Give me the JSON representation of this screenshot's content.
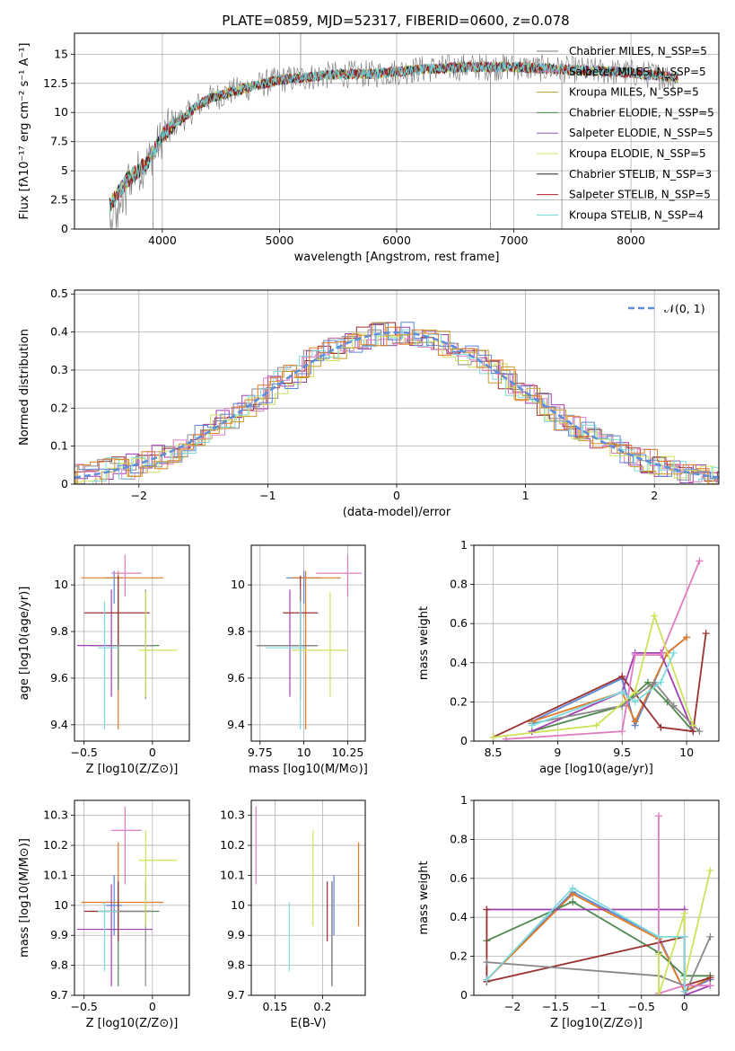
{
  "title": "PLATE=0859, MJD=52317, FIBERID=0600, z=0.078",
  "colors": [
    "#808080",
    "#e377c2",
    "#bcbd22",
    "#2ca02c",
    "#9467bd",
    "#dbdb8d",
    "#000000",
    "#d62728",
    "#17becf"
  ],
  "chart_data": [
    {
      "type": "line",
      "xlabel": "wavelength [Angstrom, rest frame]",
      "ylabel": "Flux [fλ10⁻¹⁷ erg cm⁻² s⁻¹ A⁻¹]",
      "xlim": [
        3250,
        8750
      ],
      "ylim": [
        0,
        16.8
      ],
      "xticks": [
        4000,
        5000,
        6000,
        7000,
        8000
      ],
      "yticks": [
        0.0,
        2.5,
        5.0,
        7.5,
        10.0,
        12.5,
        15.0
      ],
      "legend": "top-right",
      "series": [
        {
          "name": "Chabrier MILES, N_SSP=5",
          "color": "#7f7f7f"
        },
        {
          "name": "Salpeter MILES, N_SSP=5",
          "color": "#e377c2"
        },
        {
          "name": "Kroupa MILES, N_SSP=5",
          "color": "#bcbd22"
        },
        {
          "name": "Chabrier ELODIE, N_SSP=5",
          "color": "#2ca02c"
        },
        {
          "name": "Salpeter ELODIE, N_SSP=5",
          "color": "#9467bd"
        },
        {
          "name": "Kroupa ELODIE, N_SSP=5",
          "color": "#dbdb8d"
        },
        {
          "name": "Chabrier STELIB, N_SSP=3",
          "color": "#000000"
        },
        {
          "name": "Salpeter STELIB, N_SSP=5",
          "color": "#d62728"
        },
        {
          "name": "Kroupa STELIB, N_SSP=4",
          "color": "#17becf"
        }
      ],
      "envelope": {
        "x": [
          3550,
          3700,
          3850,
          3950,
          4000,
          4100,
          4200,
          4300,
          4400,
          4600,
          4800,
          5000,
          5200,
          5400,
          5600,
          5800,
          6000,
          6200,
          6400,
          6600,
          6800,
          7000,
          7200,
          7400,
          7600,
          7800,
          8000,
          8200,
          8400
        ],
        "y": [
          2.0,
          4.2,
          5.5,
          7.0,
          8.0,
          9.0,
          9.7,
          10.6,
          11.2,
          11.8,
          12.3,
          12.8,
          13.0,
          13.2,
          13.3,
          13.3,
          13.5,
          13.7,
          13.8,
          13.9,
          13.9,
          13.9,
          13.8,
          13.7,
          13.6,
          13.5,
          13.4,
          13.2,
          13.0
        ]
      }
    },
    {
      "type": "line",
      "xlabel": "(data-model)/error",
      "ylabel": "Normed distribution",
      "xlim": [
        -2.5,
        2.5
      ],
      "ylim": [
        0,
        0.51
      ],
      "xticks": [
        -2,
        -1,
        0,
        1,
        2
      ],
      "yticks": [
        0.0,
        0.1,
        0.2,
        0.3,
        0.4,
        0.5
      ],
      "legend": "top-right",
      "reference": {
        "name": "𝒩(0, 1)",
        "mean": 0,
        "sigma": 1,
        "color": "#5d8fd9"
      }
    },
    {
      "type": "scatter",
      "xlabel": "Z [log10(Z/Z⊙)]",
      "ylabel": "age  [log10(age/yr)]",
      "xlim": [
        -0.57,
        0.27
      ],
      "ylim": [
        9.33,
        10.17
      ],
      "xticks": [
        -0.5,
        0.0
      ],
      "yticks": [
        9.4,
        9.6,
        9.8,
        10.0
      ]
    },
    {
      "type": "scatter",
      "xlabel": "mass [log10(M/M⊙)]",
      "ylabel": "",
      "xlim": [
        9.7,
        10.35
      ],
      "ylim": [
        9.33,
        10.17
      ],
      "xticks": [
        9.75,
        10.0,
        10.25
      ],
      "yticks": [
        9.4,
        9.6,
        9.8,
        10.0
      ]
    },
    {
      "type": "line",
      "xlabel": "age  [log10(age/yr)]",
      "ylabel": "mass weight",
      "xlim": [
        8.35,
        10.25
      ],
      "ylim": [
        0,
        1.0
      ],
      "xticks": [
        8.5,
        9.0,
        9.5,
        10.0
      ],
      "yticks": [
        0.0,
        0.2,
        0.4,
        0.6,
        0.8,
        1.0
      ]
    },
    {
      "type": "scatter",
      "xlabel": "Z [log10(Z/Z⊙)]",
      "ylabel": "mass [log10(M/M⊙)]",
      "xlim": [
        -0.57,
        0.27
      ],
      "ylim": [
        9.7,
        10.35
      ],
      "xticks": [
        -0.5,
        0.0
      ],
      "yticks": [
        9.7,
        9.8,
        9.9,
        10.0,
        10.1,
        10.2,
        10.3
      ]
    },
    {
      "type": "scatter",
      "xlabel": "E(B-V)",
      "ylabel": "",
      "xlim": [
        0.125,
        0.245
      ],
      "ylim": [
        9.7,
        10.35
      ],
      "xticks": [
        0.15,
        0.2
      ],
      "yticks": [
        9.7,
        9.8,
        9.9,
        10.0,
        10.1,
        10.2,
        10.3
      ]
    },
    {
      "type": "line",
      "xlabel": "Z [log10(Z/Z⊙)]",
      "ylabel": "mass weight",
      "xlim": [
        -2.45,
        0.4
      ],
      "ylim": [
        0,
        1.0
      ],
      "xticks": [
        -2.0,
        -1.5,
        -1.0,
        -0.5,
        0.0
      ],
      "yticks": [
        0.0,
        0.2,
        0.4,
        0.6,
        0.8,
        1.0
      ]
    }
  ],
  "fits": [
    {
      "Z": -0.28,
      "Z_lo": -0.34,
      "Z_hi": -0.22,
      "age": 10.03,
      "age_lo": 9.92,
      "age_hi": 10.06,
      "mass": 10.0,
      "mass_lo": 9.9,
      "mass_hi": 10.1,
      "ebv": 0.212,
      "weights": [
        [
          8.8,
          0.1
        ],
        [
          9.5,
          0.32
        ],
        [
          9.6,
          0.08
        ],
        [
          9.85,
          0.45
        ],
        [
          10.0,
          0.53
        ]
      ],
      "zw": [
        [
          -2.3,
          0.08
        ],
        [
          -1.3,
          0.53
        ],
        [
          -0.3,
          0.3
        ],
        [
          0.0,
          0.02
        ],
        [
          0.3,
          0.08
        ]
      ]
    },
    {
      "Z": -0.25,
      "Z_lo": -0.52,
      "Z_hi": 0.08,
      "age": 10.03,
      "age_lo": 9.38,
      "age_hi": 10.06,
      "mass": 10.01,
      "mass_lo": 9.93,
      "mass_hi": 10.21,
      "ebv": 0.238,
      "weights": [
        [
          8.8,
          0.1
        ],
        [
          9.5,
          0.25
        ],
        [
          9.6,
          0.1
        ],
        [
          9.85,
          0.45
        ],
        [
          10.0,
          0.53
        ]
      ],
      "zw": [
        [
          -2.3,
          0.08
        ],
        [
          -1.3,
          0.52
        ],
        [
          -0.3,
          0.29
        ],
        [
          0.0,
          0.02
        ],
        [
          0.3,
          0.09
        ]
      ]
    },
    {
      "Z": -0.25,
      "Z_lo": -0.45,
      "Z_hi": 0.05,
      "age": 9.74,
      "age_lo": 9.55,
      "age_hi": 9.98,
      "mass": 9.98,
      "mass_lo": 9.73,
      "mass_hi": 10.08,
      "ebv": 0.21,
      "weights": [
        [
          8.8,
          0.05
        ],
        [
          9.5,
          0.18
        ],
        [
          9.7,
          0.3
        ],
        [
          9.85,
          0.2
        ],
        [
          10.05,
          0.05
        ]
      ],
      "zw": [
        [
          -2.3,
          0.28
        ],
        [
          -1.3,
          0.48
        ],
        [
          -0.3,
          0.22
        ],
        [
          0.0,
          0.1
        ],
        [
          0.3,
          0.1
        ]
      ]
    },
    {
      "Z": -0.3,
      "Z_lo": -0.55,
      "Z_hi": 0.0,
      "age": 9.74,
      "age_lo": 9.52,
      "age_hi": 9.98,
      "mass": 9.92,
      "mass_lo": 9.73,
      "mass_hi": 10.07,
      "ebv": 0.21,
      "weights": [
        [
          8.8,
          0.05
        ],
        [
          9.5,
          0.25
        ],
        [
          9.6,
          0.45
        ],
        [
          9.8,
          0.45
        ],
        [
          10.05,
          0.05
        ]
      ],
      "zw": [
        [
          -2.3,
          0.44
        ],
        [
          -0.3,
          0.44
        ],
        [
          0.0,
          0.44
        ],
        [
          0.0,
          0.0
        ],
        [
          0.3,
          0.05
        ]
      ]
    },
    {
      "Z": -0.25,
      "Z_lo": -0.5,
      "Z_hi": -0.02,
      "age": 9.88,
      "age_lo": 9.74,
      "age_hi": 10.04,
      "mass": 9.98,
      "mass_lo": 9.88,
      "mass_hi": 10.08,
      "ebv": 0.205,
      "weights": [
        [
          8.5,
          0.02
        ],
        [
          9.5,
          0.33
        ],
        [
          9.8,
          0.07
        ],
        [
          10.05,
          0.05
        ],
        [
          10.15,
          0.55
        ]
      ],
      "zw": [
        [
          -2.3,
          0.44
        ],
        [
          -2.3,
          0.07
        ],
        [
          0.0,
          0.3
        ],
        [
          0.0,
          0.05
        ],
        [
          0.3,
          0.09
        ]
      ]
    },
    {
      "Z": -0.05,
      "Z_lo": -0.3,
      "Z_hi": 0.0,
      "age": 9.74,
      "age_lo": 9.51,
      "age_hi": 9.98,
      "mass": 9.98,
      "mass_lo": 9.73,
      "mass_hi": 10.08,
      "ebv": 0.21,
      "weights": [
        [
          8.8,
          0.09
        ],
        [
          9.5,
          0.18
        ],
        [
          9.75,
          0.3
        ],
        [
          9.9,
          0.18
        ],
        [
          10.1,
          0.05
        ]
      ],
      "zw": [
        [
          -2.3,
          0.17
        ],
        [
          -0.3,
          0.1
        ],
        [
          0.0,
          0.05
        ],
        [
          0.0,
          0.0
        ],
        [
          0.3,
          0.3
        ]
      ]
    },
    {
      "Z": -0.2,
      "Z_lo": -0.3,
      "Z_hi": -0.08,
      "age": 10.05,
      "age_lo": 9.95,
      "age_hi": 10.13,
      "mass": 10.25,
      "mass_lo": 10.07,
      "mass_hi": 10.33,
      "ebv": 0.13,
      "weights": [
        [
          8.6,
          0.01
        ],
        [
          9.5,
          0.05
        ],
        [
          9.6,
          0.44
        ],
        [
          9.8,
          0.44
        ],
        [
          10.1,
          0.92
        ]
      ],
      "zw": [
        [
          -0.3,
          0.92
        ],
        [
          -0.3,
          0.01
        ],
        [
          0.0,
          0.05
        ],
        [
          0.0,
          0.05
        ],
        [
          0.3,
          0.05
        ]
      ]
    },
    {
      "Z": -0.05,
      "Z_lo": -0.1,
      "Z_hi": 0.18,
      "age": 9.72,
      "age_lo": 9.52,
      "age_hi": 9.97,
      "mass": 10.15,
      "mass_lo": 9.93,
      "mass_hi": 10.25,
      "ebv": 0.19,
      "weights": [
        [
          8.5,
          0.02
        ],
        [
          9.3,
          0.08
        ],
        [
          9.6,
          0.25
        ],
        [
          9.75,
          0.64
        ],
        [
          10.05,
          0.08
        ]
      ],
      "zw": [
        [
          -0.3,
          0.21
        ],
        [
          -0.3,
          0.0
        ],
        [
          0.0,
          0.42
        ],
        [
          0.0,
          0.08
        ],
        [
          0.3,
          0.64
        ]
      ]
    },
    {
      "Z": -0.35,
      "Z_lo": -0.4,
      "Z_hi": -0.25,
      "age": 9.73,
      "age_lo": 9.38,
      "age_hi": 9.93,
      "mass": 9.98,
      "mass_lo": 9.78,
      "mass_hi": 10.01,
      "ebv": 0.165,
      "weights": [
        [
          8.8,
          0.08
        ],
        [
          9.5,
          0.25
        ],
        [
          9.6,
          0.2
        ],
        [
          9.8,
          0.3
        ],
        [
          9.9,
          0.45
        ]
      ],
      "zw": [
        [
          -2.3,
          0.08
        ],
        [
          -1.3,
          0.55
        ],
        [
          -0.3,
          0.3
        ],
        [
          0.0,
          0.3
        ],
        [
          0.0,
          0.02
        ]
      ]
    }
  ]
}
